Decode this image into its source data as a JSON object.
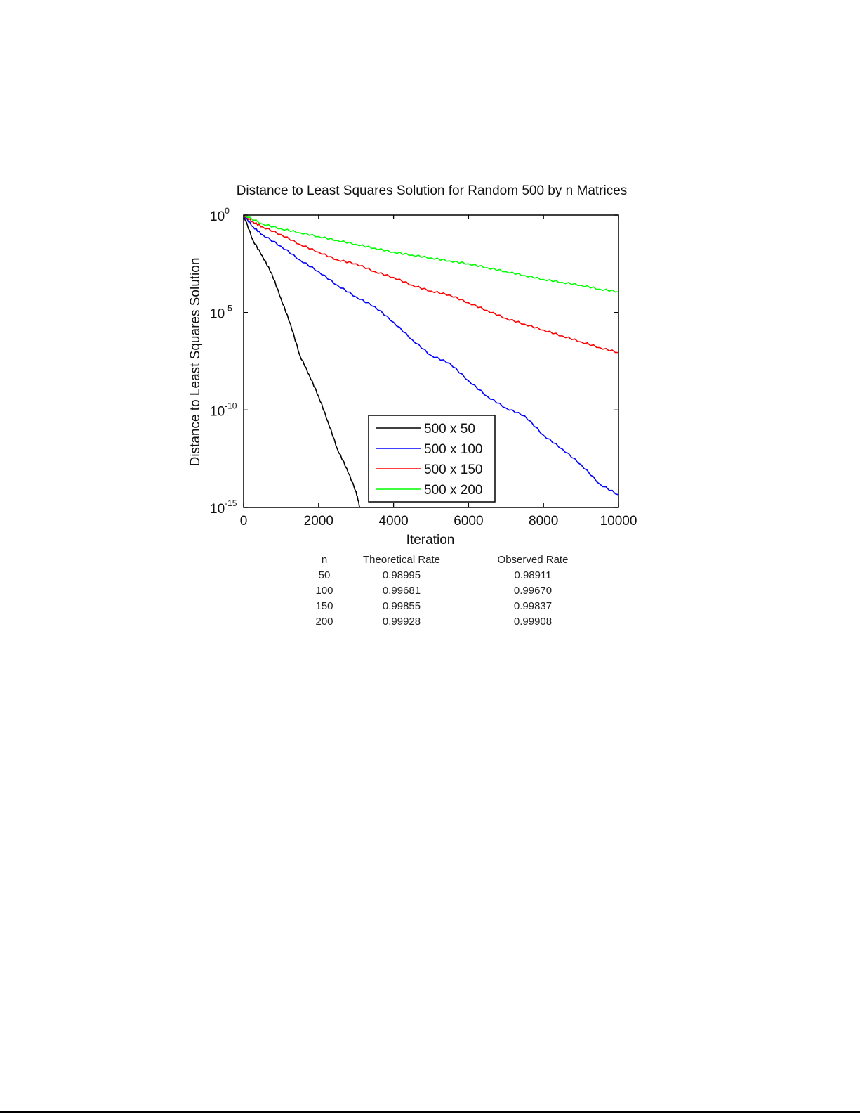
{
  "chart_data": {
    "type": "line",
    "title": "Distance to Least Squares Solution for Random 500 by n Matrices",
    "xlabel": "Iteration",
    "ylabel": "Distance to Least Squares Solution",
    "yscale": "log",
    "xlim": [
      0,
      10000
    ],
    "ylim": [
      1e-15,
      1
    ],
    "xticks": [
      0,
      2000,
      4000,
      6000,
      8000,
      10000
    ],
    "xtick_labels": [
      "0",
      "2000",
      "4000",
      "6000",
      "8000",
      "10000"
    ],
    "yticks_log10": [
      0,
      -5,
      -10,
      -15
    ],
    "ytick_labels": [
      {
        "base": "10",
        "exp": "0"
      },
      {
        "base": "10",
        "exp": "-5"
      },
      {
        "base": "10",
        "exp": "-10"
      },
      {
        "base": "10",
        "exp": "-15"
      }
    ],
    "grid": false,
    "legend_position": "lower center",
    "series": [
      {
        "name": "500 x 50",
        "color": "#000000",
        "x": [
          0,
          250,
          500,
          750,
          1000,
          1250,
          1500,
          1750,
          2000,
          2250,
          2500,
          2750,
          3000,
          3100
        ],
        "log10_y": [
          0,
          -1.3,
          -2.1,
          -3.0,
          -4.3,
          -5.6,
          -7.2,
          -8.2,
          -9.3,
          -10.6,
          -12.0,
          -13.0,
          -14.2,
          -15.0
        ]
      },
      {
        "name": "500 x 100",
        "color": "#0000ff",
        "x": [
          0,
          250,
          500,
          1000,
          1500,
          2000,
          2500,
          3000,
          3500,
          4000,
          4500,
          5000,
          5500,
          6000,
          6500,
          7000,
          7500,
          8000,
          8500,
          9000,
          9500,
          10000
        ],
        "log10_y": [
          0,
          -0.6,
          -1.0,
          -1.6,
          -2.3,
          -2.9,
          -3.6,
          -4.2,
          -4.7,
          -5.5,
          -6.4,
          -7.2,
          -7.6,
          -8.5,
          -9.3,
          -9.9,
          -10.3,
          -11.3,
          -12.0,
          -12.8,
          -13.8,
          -14.35
        ]
      },
      {
        "name": "500 x 150",
        "color": "#ff0000",
        "x": [
          0,
          250,
          500,
          1000,
          1500,
          2000,
          2500,
          3000,
          3500,
          4000,
          4500,
          5000,
          5500,
          6000,
          6500,
          7000,
          7500,
          8000,
          8500,
          9000,
          9500,
          10000
        ],
        "log10_y": [
          0,
          -0.35,
          -0.6,
          -1.0,
          -1.5,
          -1.9,
          -2.3,
          -2.5,
          -2.9,
          -3.2,
          -3.6,
          -3.9,
          -4.1,
          -4.5,
          -4.9,
          -5.3,
          -5.6,
          -5.9,
          -6.2,
          -6.5,
          -6.8,
          -7.05
        ]
      },
      {
        "name": "500 x 200",
        "color": "#00ff00",
        "x": [
          0,
          500,
          1000,
          1500,
          2000,
          2500,
          3000,
          3500,
          4000,
          4500,
          5000,
          5500,
          6000,
          6500,
          7000,
          7500,
          8000,
          8500,
          9000,
          9500,
          10000
        ],
        "log10_y": [
          0,
          -0.45,
          -0.7,
          -0.9,
          -1.1,
          -1.3,
          -1.5,
          -1.7,
          -1.9,
          -2.05,
          -2.2,
          -2.35,
          -2.5,
          -2.7,
          -2.9,
          -3.1,
          -3.3,
          -3.45,
          -3.6,
          -3.8,
          -3.93
        ]
      }
    ]
  },
  "rate_table": {
    "headers": {
      "n": "n",
      "theoretical": "Theoretical Rate",
      "observed": "Observed Rate"
    },
    "rows": [
      {
        "n": "50",
        "theoretical": "0.98995",
        "observed": "0.98911"
      },
      {
        "n": "100",
        "theoretical": "0.99681",
        "observed": "0.99670"
      },
      {
        "n": "150",
        "theoretical": "0.99855",
        "observed": "0.99837"
      },
      {
        "n": "200",
        "theoretical": "0.99928",
        "observed": "0.99908"
      }
    ]
  }
}
